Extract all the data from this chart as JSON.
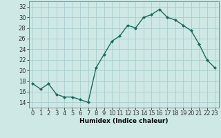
{
  "x": [
    0,
    1,
    2,
    3,
    4,
    5,
    6,
    7,
    8,
    9,
    10,
    11,
    12,
    13,
    14,
    15,
    16,
    17,
    18,
    19,
    20,
    21,
    22,
    23
  ],
  "y": [
    17.5,
    16.5,
    17.5,
    15.5,
    15.0,
    15.0,
    14.5,
    14.0,
    20.5,
    23.0,
    25.5,
    26.5,
    28.5,
    28.0,
    30.0,
    30.5,
    31.5,
    30.0,
    29.5,
    28.5,
    27.5,
    25.0,
    22.0,
    20.5
  ],
  "line_color": "#1a6b5a",
  "marker": "D",
  "markersize": 2.0,
  "linewidth": 1.0,
  "background_color": "#cde8e5",
  "grid_color": "#a8cece",
  "xlabel": "Humidex (Indice chaleur)",
  "xlim": [
    -0.5,
    23.5
  ],
  "ylim": [
    13,
    33
  ],
  "yticks": [
    14,
    16,
    18,
    20,
    22,
    24,
    26,
    28,
    30,
    32
  ],
  "xticks": [
    0,
    1,
    2,
    3,
    4,
    5,
    6,
    7,
    8,
    9,
    10,
    11,
    12,
    13,
    14,
    15,
    16,
    17,
    18,
    19,
    20,
    21,
    22,
    23
  ],
  "xlabel_fontsize": 6.5,
  "tick_fontsize": 6.0
}
